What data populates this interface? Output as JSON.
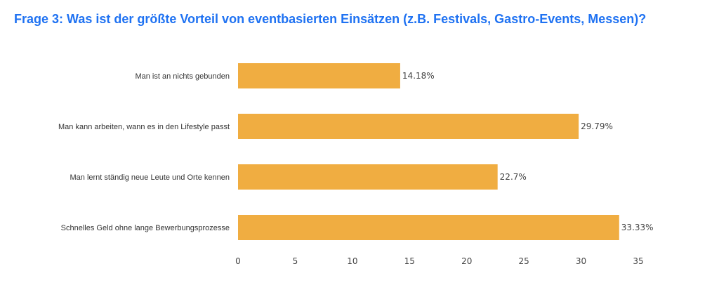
{
  "chart_data": {
    "type": "bar",
    "orientation": "horizontal",
    "title": "Frage 3: Was ist der größte Vorteil von eventbasierten Einsätzen (z.B. Festivals, Gastro-Events, Messen)?",
    "categories": [
      "Man ist an nichts gebunden",
      "Man kann arbeiten, wann es in den Lifestyle passt",
      "Man lernt ständig neue Leute und Orte kennen",
      "Schnelles Geld ohne lange Bewerbungsprozesse"
    ],
    "values": [
      14.18,
      29.79,
      22.7,
      33.33
    ],
    "data_labels": [
      "14.18%",
      "29.79%",
      "22.7%",
      "33.33%"
    ],
    "xlim": [
      0,
      35
    ],
    "xticks": [
      "0",
      "5",
      "10",
      "15",
      "20",
      "25",
      "30",
      "35"
    ],
    "grid": false,
    "bar_color": "#f0ad41",
    "title_color": "#1f72f2"
  }
}
